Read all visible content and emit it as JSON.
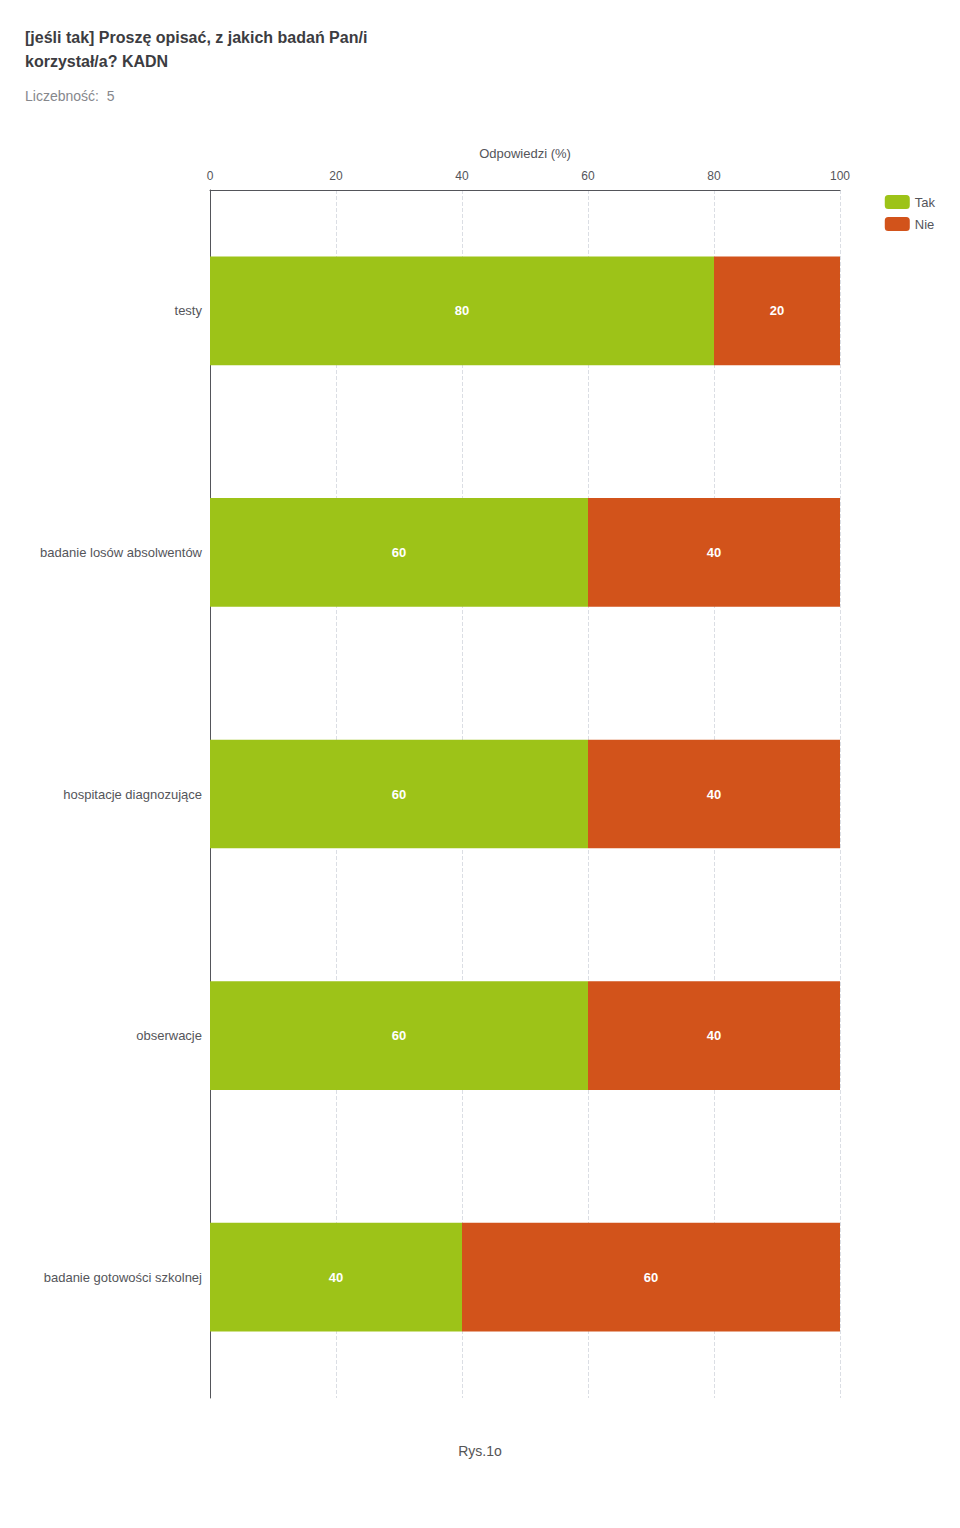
{
  "chart_data": {
    "type": "bar",
    "title": "[jeśli tak] Proszę opisać, z jakich badań Pan/i\nkorzystał/a? KADN",
    "subtitle": "Liczebność:  5",
    "xlabel": "Odpowiedzi (%)",
    "categories": [
      "testy",
      "badanie losów absolwentów",
      "hospitacje diagnozujące",
      "obserwacje",
      "badanie gotowości szkolnej"
    ],
    "series": [
      {
        "name": "Tak",
        "color": "#9DC318",
        "values": [
          80,
          60,
          60,
          60,
          40
        ]
      },
      {
        "name": "Nie",
        "color": "#D2531B",
        "values": [
          20,
          40,
          40,
          40,
          60
        ]
      }
    ],
    "orientation": "horizontal",
    "stacked": true,
    "data_labels": true,
    "xlim": [
      0,
      100
    ],
    "xticks": [
      0,
      20,
      40,
      60,
      80,
      100
    ],
    "grid": true,
    "legend": "upper right",
    "annotations": [
      "Rys.1o"
    ]
  }
}
